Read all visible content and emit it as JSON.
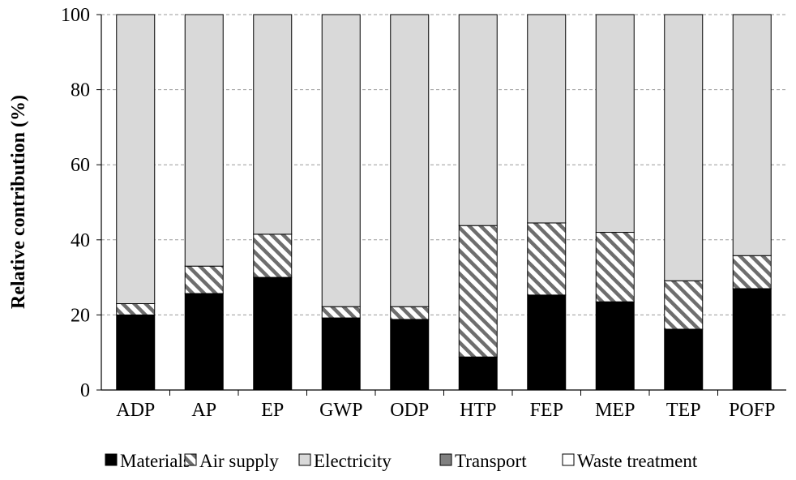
{
  "chart_data": {
    "type": "bar",
    "stacked": true,
    "title": "",
    "xlabel": "",
    "ylabel": "Relative contribution (%)",
    "ylim": [
      0,
      100
    ],
    "yticks": [
      0,
      20,
      40,
      60,
      80,
      100
    ],
    "grid": "horizontal dashed",
    "legend_position": "bottom",
    "categories": [
      "ADP",
      "AP",
      "EP",
      "GWP",
      "ODP",
      "HTP",
      "FEP",
      "MEP",
      "TEP",
      "POFP"
    ],
    "series": [
      {
        "name": "Materials",
        "fill": "solid",
        "color": "#000000",
        "values": [
          20.0,
          25.7,
          30.0,
          19.2,
          18.8,
          8.8,
          25.3,
          23.5,
          16.2,
          27.0
        ]
      },
      {
        "name": "Air supply",
        "fill": "hatch",
        "color": "#ffffff",
        "values": [
          3.0,
          7.3,
          11.5,
          3.0,
          3.4,
          35.0,
          19.2,
          18.5,
          12.9,
          8.8
        ]
      },
      {
        "name": "Electricity",
        "fill": "solid",
        "color": "#d9d9d9",
        "values": [
          77.0,
          67.0,
          58.5,
          77.8,
          77.8,
          56.2,
          55.5,
          58.0,
          70.9,
          64.2
        ]
      },
      {
        "name": "Transport",
        "fill": "solid",
        "color": "#808080",
        "values": [
          0,
          0,
          0,
          0,
          0,
          0,
          0,
          0,
          0,
          0
        ]
      },
      {
        "name": "Waste treatment",
        "fill": "solid",
        "color": "#ffffff",
        "values": [
          0,
          0,
          0,
          0,
          0,
          0,
          0,
          0,
          0,
          0
        ]
      }
    ]
  }
}
